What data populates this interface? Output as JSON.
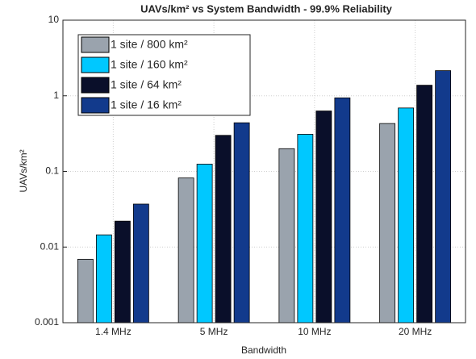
{
  "chart_data": {
    "type": "bar",
    "title": "UAVs/km² vs System Bandwidth - 99.9% Reliability",
    "x_label": "Bandwidth",
    "y_label": "UAVs/km²",
    "categories": [
      "1.4 MHz",
      "5 MHz",
      "10 MHz",
      "20 MHz"
    ],
    "series": [
      {
        "name": "1 site / 800 km²",
        "color": "#9aa3ad",
        "values": [
          0.0069,
          0.082,
          0.2,
          0.43
        ]
      },
      {
        "name": "1 site / 160 km²",
        "color": "#00c8ff",
        "values": [
          0.0145,
          0.125,
          0.31,
          0.69
        ]
      },
      {
        "name": "1 site / 64 km²",
        "color": "#0a0f2a",
        "values": [
          0.022,
          0.3,
          0.63,
          1.38
        ]
      },
      {
        "name": "1 site / 16 km²",
        "color": "#123a8c",
        "values": [
          0.037,
          0.44,
          0.94,
          2.15
        ]
      }
    ],
    "ylim": [
      0.001,
      10
    ],
    "yticks": [
      0.001,
      0.01,
      0.1,
      1,
      10
    ],
    "log_y": true,
    "grid": true,
    "legend": "upper-left"
  }
}
